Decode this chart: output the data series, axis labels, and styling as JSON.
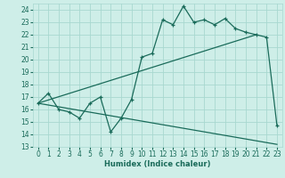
{
  "xlabel": "Humidex (Indice chaleur)",
  "bg_color": "#ceeee8",
  "grid_color": "#a8d8d0",
  "line_color": "#1a6b5a",
  "xlim": [
    -0.5,
    23.5
  ],
  "ylim": [
    13,
    24.5
  ],
  "xticks": [
    0,
    1,
    2,
    3,
    4,
    5,
    6,
    7,
    8,
    9,
    10,
    11,
    12,
    13,
    14,
    15,
    16,
    17,
    18,
    19,
    20,
    21,
    22,
    23
  ],
  "yticks": [
    13,
    14,
    15,
    16,
    17,
    18,
    19,
    20,
    21,
    22,
    23,
    24
  ],
  "main_line": [
    [
      0,
      16.5
    ],
    [
      1,
      17.3
    ],
    [
      2,
      16.0
    ],
    [
      3,
      15.8
    ],
    [
      4,
      15.3
    ],
    [
      5,
      16.5
    ],
    [
      6,
      17.0
    ],
    [
      7,
      14.2
    ],
    [
      8,
      15.3
    ],
    [
      9,
      16.8
    ],
    [
      10,
      20.2
    ],
    [
      11,
      20.5
    ],
    [
      12,
      23.2
    ],
    [
      13,
      22.8
    ],
    [
      14,
      24.3
    ],
    [
      15,
      23.0
    ],
    [
      16,
      23.2
    ],
    [
      17,
      22.8
    ],
    [
      18,
      23.3
    ],
    [
      19,
      22.5
    ],
    [
      20,
      22.2
    ],
    [
      21,
      22.0
    ],
    [
      22,
      21.8
    ],
    [
      23,
      14.7
    ]
  ],
  "upper_line": [
    [
      0,
      16.5
    ],
    [
      21,
      22.0
    ]
  ],
  "lower_line": [
    [
      0,
      16.5
    ],
    [
      23,
      13.2
    ]
  ],
  "xlabel_fontsize": 6.0,
  "tick_fontsize": 5.5
}
